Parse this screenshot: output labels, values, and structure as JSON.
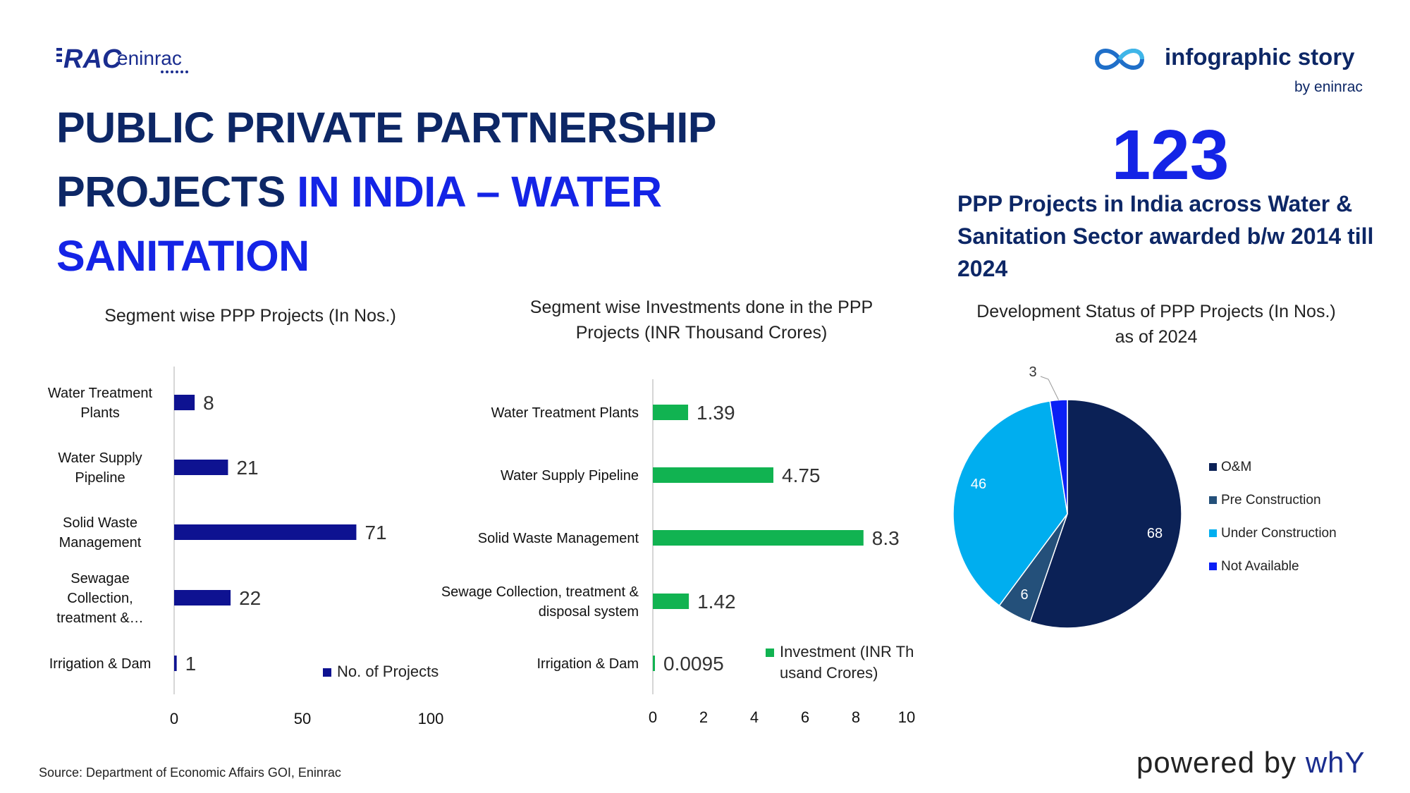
{
  "header": {
    "logo_text": "RAC eninrac",
    "brand_title": "infographic story",
    "brand_sub": "by eninrac"
  },
  "title": {
    "line1": "PUBLIC PRIVATE PARTNERSHIP",
    "line2_dark": "PROJECTS ",
    "line2_highlight": "IN INDIA – WATER",
    "line3_highlight": "SANITATION"
  },
  "stat": {
    "number": "123",
    "description": "PPP Projects in India across Water & Sanitation Sector awarded b/w 2014 till 2024"
  },
  "colors": {
    "navy": "#0d2766",
    "blue": "#1424e6",
    "bar1": "#0e1291",
    "bar2": "#11b351",
    "pie_om": "#0b2156",
    "pie_pre": "#24507a",
    "pie_under": "#00aeef",
    "pie_na": "#0a1ff5"
  },
  "footer": {
    "source": "Source: Department of Economic Affairs GOI, Eninrac",
    "powered_prefix": "powered by ",
    "powered_brand": "whY"
  },
  "chart_data": [
    {
      "type": "bar",
      "orientation": "horizontal",
      "title": "Segment wise PPP Projects (In Nos.)",
      "categories": [
        [
          "Water Treatment",
          "Plants"
        ],
        [
          "Water Supply",
          "Pipeline"
        ],
        [
          "Solid Waste",
          "Management"
        ],
        [
          "Sewagae",
          "Collection,",
          "treatment &…"
        ],
        [
          "Irrigation & Dam"
        ]
      ],
      "series": [
        {
          "name": "No. of Projects",
          "values": [
            8,
            21,
            71,
            22,
            1
          ],
          "labels": [
            "8",
            "21",
            "71",
            "22",
            "1"
          ]
        }
      ],
      "xlim": [
        0,
        100
      ],
      "xticks": [
        0,
        50,
        100
      ],
      "legend": "bottom-right"
    },
    {
      "type": "bar",
      "orientation": "horizontal",
      "title": "Segment wise Investments done in the PPP Projects (INR Thousand Crores)",
      "categories": [
        [
          "Water Treatment Plants"
        ],
        [
          "Water Supply Pipeline"
        ],
        [
          "Solid Waste Management"
        ],
        [
          "Sewage Collection, treatment &",
          "disposal system"
        ],
        [
          "Irrigation & Dam"
        ]
      ],
      "series": [
        {
          "name": "Investment (INR Thousand Crores)",
          "values": [
            1.39,
            4.75,
            8.3,
            1.42,
            0.0095
          ],
          "labels": [
            "1.39",
            "4.75",
            "8.3",
            "1.42",
            "0.0095"
          ]
        }
      ],
      "xlim": [
        0,
        10
      ],
      "xticks": [
        0,
        2,
        4,
        6,
        8,
        10
      ],
      "legend": "bottom-right"
    },
    {
      "type": "pie",
      "title": "Development Status of PPP Projects (In Nos.) as of 2024",
      "slices": [
        {
          "label": "O&M",
          "value": 68,
          "text": "68"
        },
        {
          "label": "Pre Construction",
          "value": 6,
          "text": "6"
        },
        {
          "label": "Under Construction",
          "value": 46,
          "text": "46"
        },
        {
          "label": "Not Available",
          "value": 3,
          "text": "3"
        }
      ],
      "legend": "right"
    }
  ]
}
